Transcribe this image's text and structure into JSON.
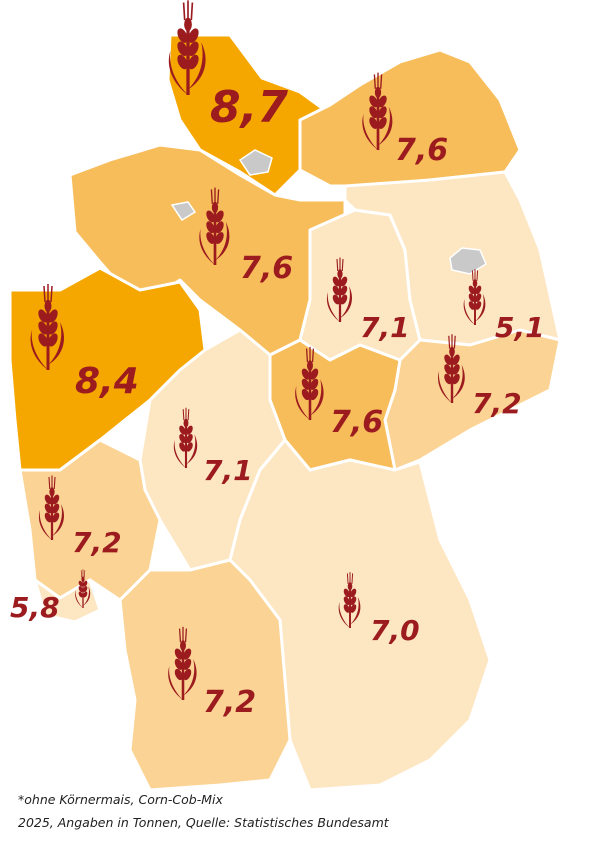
{
  "colors": {
    "tier_highest": "#f5a700",
    "tier_high": "#f7bd5a",
    "tier_mid": "#fbd394",
    "tier_low": "#fde6c2",
    "city_state": "#c9c9c9",
    "value_text": "#9b1b1f"
  },
  "icon": "wheat-icon",
  "regions": [
    {
      "value": "8,7",
      "tier": "tier_highest"
    },
    {
      "value": "7,6",
      "tier": "tier_high"
    },
    {
      "value": "7,6",
      "tier": "tier_high"
    },
    {
      "value": "8,4",
      "tier": "tier_highest"
    },
    {
      "value": "7,1",
      "tier": "tier_low"
    },
    {
      "value": "5,1",
      "tier": "tier_low"
    },
    {
      "value": "7,2",
      "tier": "tier_mid"
    },
    {
      "value": "7,6",
      "tier": "tier_high"
    },
    {
      "value": "7,1",
      "tier": "tier_low"
    },
    {
      "value": "7,2",
      "tier": "tier_mid"
    },
    {
      "value": "5,8",
      "tier": "tier_low"
    },
    {
      "value": "7,0",
      "tier": "tier_low"
    },
    {
      "value": "7,2",
      "tier": "tier_mid"
    }
  ],
  "footnote": {
    "line1": "*ohne Körnermais, Corn-Cob-Mix",
    "line2": "2025, Angaben in Tonnen, Quelle: Statistisches Bundesamt"
  }
}
